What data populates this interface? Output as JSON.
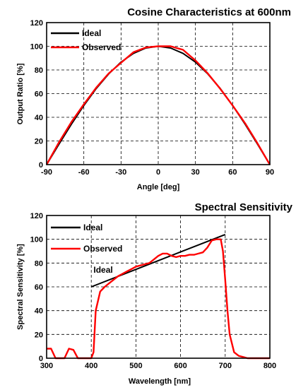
{
  "chart_data": [
    {
      "type": "line",
      "title": "Cosine Characteristics at 600nm",
      "xlabel": "Angle [deg]",
      "ylabel": "Output Ratio [%]",
      "xlim": [
        -90,
        90
      ],
      "ylim": [
        0,
        120
      ],
      "xticks": [
        -90,
        -60,
        -30,
        0,
        30,
        60,
        90
      ],
      "yticks": [
        0,
        20,
        40,
        60,
        80,
        100,
        120
      ],
      "xtick_labels": [
        "-90",
        "-60",
        "-30",
        "0",
        "30",
        "60",
        "90"
      ],
      "ytick_labels": [
        "0",
        "20",
        "40",
        "60",
        "80",
        "100",
        "120"
      ],
      "grid": true,
      "legend_position": "top-left",
      "series": [
        {
          "name": "Ideal",
          "color": "#000000",
          "x": [
            -90,
            -80,
            -70,
            -60,
            -50,
            -40,
            -30,
            -20,
            -10,
            0,
            10,
            20,
            30,
            40,
            50,
            60,
            70,
            80,
            90
          ],
          "y": [
            0,
            17.4,
            34.2,
            50,
            64.3,
            76.6,
            86.6,
            94,
            98.5,
            100,
            98.5,
            94,
            86.6,
            76.6,
            64.3,
            50,
            34.2,
            17.4,
            0
          ]
        },
        {
          "name": "Observed",
          "color": "#ff0000",
          "x": [
            -90,
            -80,
            -70,
            -60,
            -50,
            -40,
            -30,
            -20,
            -10,
            0,
            10,
            20,
            30,
            40,
            50,
            60,
            70,
            80,
            90
          ],
          "y": [
            0,
            19,
            36,
            51,
            65,
            77,
            86,
            95,
            99,
            100,
            100,
            97,
            88,
            77,
            64,
            50,
            35,
            18,
            0
          ]
        }
      ]
    },
    {
      "type": "line",
      "title": "Spectral Sensitivity",
      "xlabel": "Wavelength [nm]",
      "ylabel": "Spectral Sensitivity [%]",
      "xlim": [
        300,
        800
      ],
      "ylim": [
        0,
        120
      ],
      "xticks": [
        300,
        400,
        500,
        600,
        700,
        800
      ],
      "yticks": [
        0,
        20,
        40,
        60,
        80,
        100,
        120
      ],
      "xtick_labels": [
        "300",
        "400",
        "500",
        "600",
        "700",
        "800"
      ],
      "ytick_labels": [
        "0",
        "20",
        "40",
        "60",
        "80",
        "100",
        "120"
      ],
      "grid": true,
      "legend_position": "top-left",
      "annotations": [
        {
          "text": "Ideal",
          "x": 405,
          "y": 72
        }
      ],
      "series": [
        {
          "name": "Ideal",
          "color": "#000000",
          "x": [
            400,
            700
          ],
          "y": [
            60,
            104
          ]
        },
        {
          "name": "Observed",
          "color": "#ff0000",
          "x": [
            300,
            310,
            320,
            330,
            340,
            350,
            360,
            370,
            380,
            390,
            400,
            405,
            410,
            420,
            430,
            440,
            450,
            460,
            470,
            480,
            490,
            500,
            510,
            520,
            530,
            540,
            550,
            560,
            570,
            580,
            590,
            600,
            610,
            620,
            630,
            640,
            650,
            660,
            670,
            680,
            690,
            695,
            700,
            705,
            710,
            720,
            730,
            740,
            750,
            760,
            770,
            780,
            790,
            800
          ],
          "y": [
            8,
            8,
            0,
            0,
            0,
            8,
            7,
            0,
            0,
            0,
            0,
            5,
            40,
            56,
            60,
            63,
            66,
            69,
            71,
            73,
            75,
            77,
            78,
            79,
            80,
            83,
            86,
            88,
            88,
            86,
            85,
            86,
            86,
            87,
            87,
            88,
            89,
            93,
            99,
            100,
            100,
            90,
            66,
            40,
            20,
            5,
            2,
            1,
            0,
            0,
            0,
            0,
            0,
            0
          ]
        }
      ]
    }
  ]
}
